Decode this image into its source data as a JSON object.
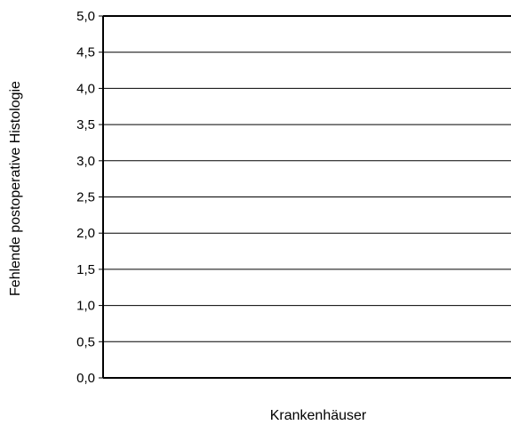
{
  "chart_data": {
    "type": "bar",
    "categories": [],
    "series": [],
    "xlabel": "Krankenhäuser",
    "ylabel": "Fehlende postoperative Histologie",
    "ylim": [
      0,
      5
    ],
    "yticks": [
      "0,0",
      "0,5",
      "1,0",
      "1,5",
      "2,0",
      "2,5",
      "3,0",
      "3,5",
      "4,0",
      "4,5",
      "5,0"
    ],
    "grid": true
  }
}
